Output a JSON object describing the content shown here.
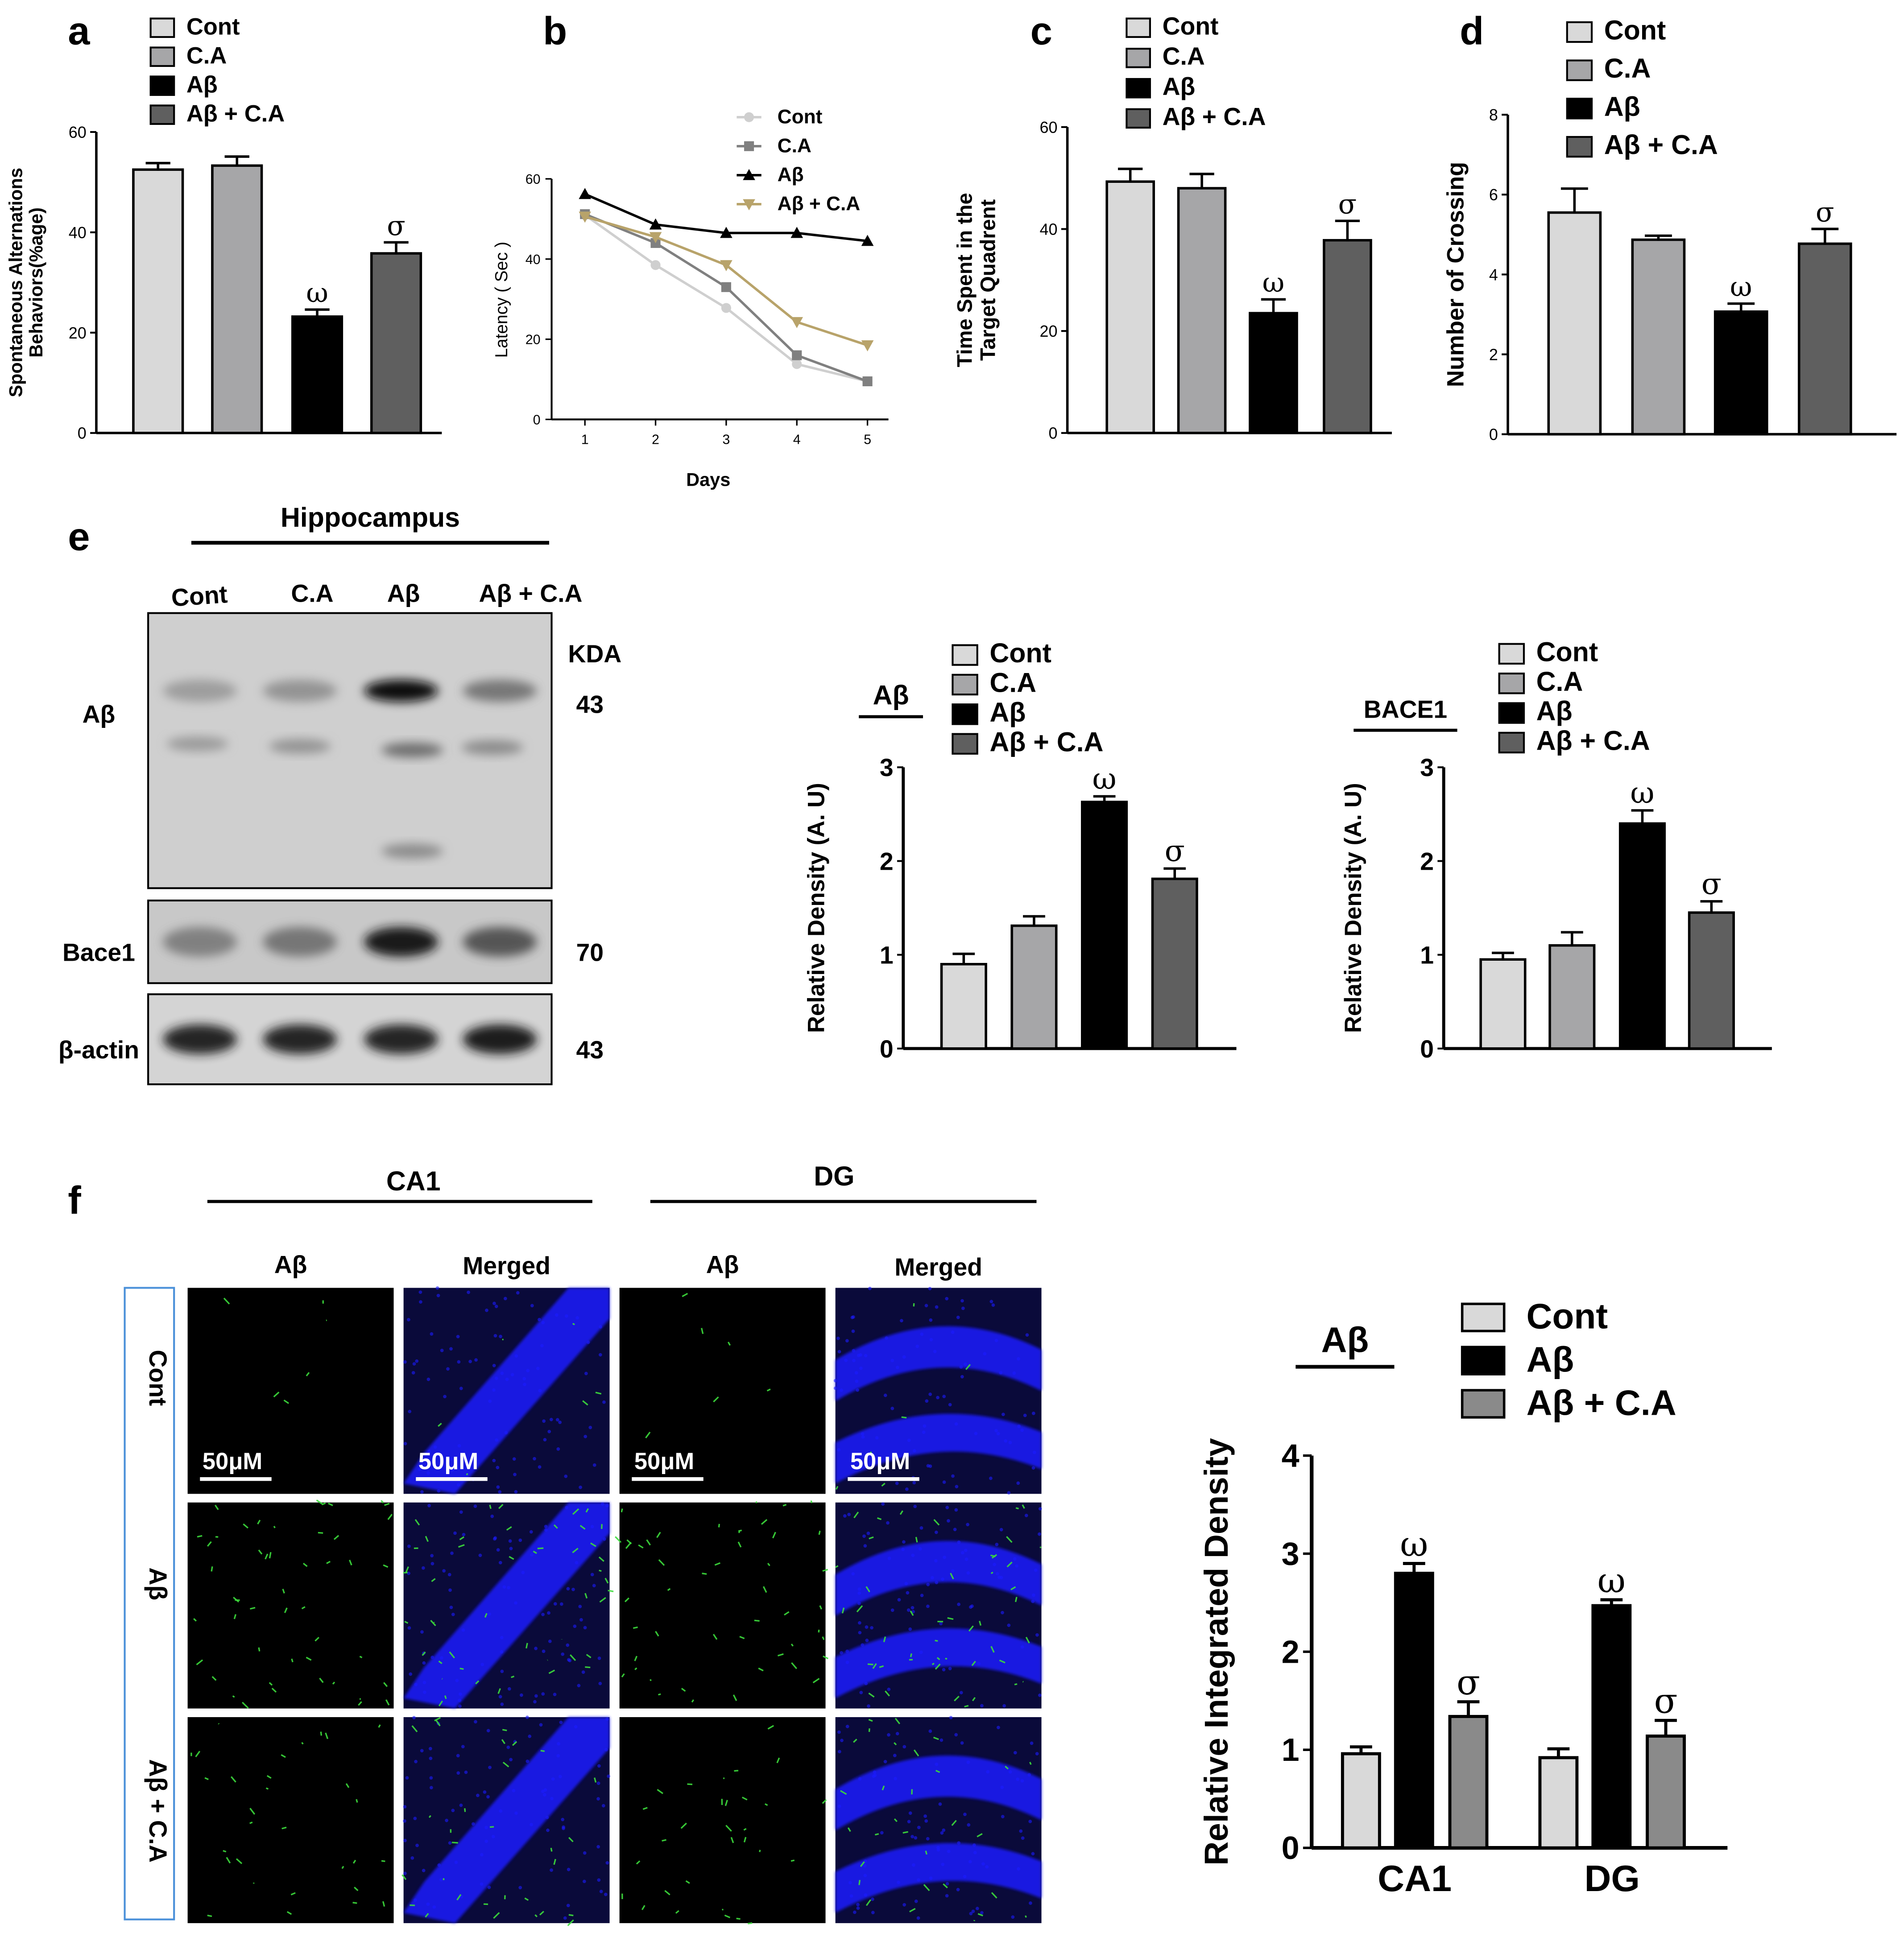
{
  "colors": {
    "cont": "#d9d9d9",
    "ca": "#a6a6a8",
    "ab": "#000000",
    "abca": "#5f5f5f",
    "abca_f": "#8a8a8a",
    "line_cont": "#cfcfcf",
    "line_ca": "#808080",
    "line_ab": "#000000",
    "line_abca": "#b8a36a",
    "nuclei": "#1a1aff",
    "abeta_stain": "#3cdc3c",
    "caption_box": "#4a90d9"
  },
  "chart_data": [
    {
      "id": "a",
      "panel_label": "a",
      "type": "bar",
      "ylabel_lines": [
        "Spontaneous Alternations",
        "Behaviors(%age)"
      ],
      "ylim": [
        0,
        60
      ],
      "yticks": [
        0,
        20,
        40,
        60
      ],
      "legend": [
        "Cont",
        "C.A",
        "Aβ",
        "Aβ + C.A"
      ],
      "legend_position": "top",
      "series": [
        {
          "name": "Cont",
          "value": 52.5,
          "error": 1.3,
          "mark": ""
        },
        {
          "name": "C.A",
          "value": 53.3,
          "error": 1.8,
          "mark": ""
        },
        {
          "name": "Aβ",
          "value": 23.2,
          "error": 1.4,
          "mark": "ω"
        },
        {
          "name": "Aβ + C.A",
          "value": 35.8,
          "error": 2.2,
          "mark": "σ"
        }
      ]
    },
    {
      "id": "b",
      "panel_label": "b",
      "type": "line",
      "xlabel": "Days",
      "ylabel": "Latency ( Sec )",
      "x": [
        1,
        2,
        3,
        4,
        5
      ],
      "ylim": [
        0,
        60
      ],
      "yticks": [
        0,
        20,
        40,
        60
      ],
      "legend_position": "top-right",
      "series": [
        {
          "name": "Cont",
          "marker": "circle",
          "values": [
            51,
            38.5,
            27.8,
            13.8,
            9.5
          ]
        },
        {
          "name": "C.A",
          "marker": "square",
          "values": [
            51.2,
            44,
            33,
            16,
            9.5
          ]
        },
        {
          "name": "Aβ",
          "marker": "triangle-up",
          "values": [
            56.2,
            48.6,
            46.5,
            46.5,
            44.5
          ]
        },
        {
          "name": "Aβ + C.A",
          "marker": "triangle-down",
          "values": [
            50.6,
            45.5,
            38.5,
            24.3,
            18.5
          ]
        }
      ]
    },
    {
      "id": "c",
      "panel_label": "c",
      "type": "bar",
      "ylabel_lines": [
        "Time Spent in the",
        "Target Quadrent"
      ],
      "ylim": [
        0,
        60
      ],
      "yticks": [
        0,
        20,
        40,
        60
      ],
      "legend": [
        "Cont",
        "C.A",
        "Aβ",
        "Aβ + C.A"
      ],
      "legend_position": "top",
      "series": [
        {
          "name": "Cont",
          "value": 49.3,
          "error": 2.5,
          "mark": ""
        },
        {
          "name": "C.A",
          "value": 48,
          "error": 2.8,
          "mark": ""
        },
        {
          "name": "Aβ",
          "value": 23.5,
          "error": 2.7,
          "mark": "ω"
        },
        {
          "name": "Aβ + C.A",
          "value": 37.8,
          "error": 3.8,
          "mark": "σ"
        }
      ]
    },
    {
      "id": "d",
      "panel_label": "d",
      "type": "bar",
      "ylabel_lines": [
        "Number of Crossing"
      ],
      "ylim": [
        0,
        8
      ],
      "yticks": [
        0,
        2,
        4,
        6,
        8
      ],
      "legend": [
        "Cont",
        "C.A",
        "Aβ",
        "Aβ + C.A"
      ],
      "legend_position": "top",
      "series": [
        {
          "name": "Cont",
          "value": 5.55,
          "error": 0.6,
          "mark": ""
        },
        {
          "name": "C.A",
          "value": 4.87,
          "error": 0.1,
          "mark": ""
        },
        {
          "name": "Aβ",
          "value": 3.07,
          "error": 0.2,
          "mark": "ω"
        },
        {
          "name": "Aβ + C.A",
          "value": 4.77,
          "error": 0.37,
          "mark": "σ"
        }
      ]
    },
    {
      "id": "e1",
      "type": "bar",
      "title": "Aβ",
      "ylabel_lines": [
        "Relative Density (A. U)"
      ],
      "ylim": [
        0,
        3
      ],
      "yticks": [
        0,
        1,
        2,
        3
      ],
      "legend": [
        "Cont",
        "C.A",
        "Aβ",
        "Aβ + C.A"
      ],
      "legend_position": "top-right",
      "series": [
        {
          "name": "Cont",
          "value": 0.9,
          "error": 0.11,
          "mark": ""
        },
        {
          "name": "C.A",
          "value": 1.31,
          "error": 0.1,
          "mark": ""
        },
        {
          "name": "Aβ",
          "value": 2.63,
          "error": 0.06,
          "mark": "ω"
        },
        {
          "name": "Aβ + C.A",
          "value": 1.81,
          "error": 0.11,
          "mark": "σ"
        }
      ]
    },
    {
      "id": "e2",
      "type": "bar",
      "title": "BACE1",
      "ylabel_lines": [
        "Relative Density (A. U)"
      ],
      "ylim": [
        0,
        3
      ],
      "yticks": [
        0,
        1,
        2,
        3
      ],
      "legend": [
        "Cont",
        "C.A",
        "Aβ",
        "Aβ + C.A"
      ],
      "legend_position": "top-right",
      "series": [
        {
          "name": "Cont",
          "value": 0.95,
          "error": 0.07,
          "mark": ""
        },
        {
          "name": "C.A",
          "value": 1.1,
          "error": 0.14,
          "mark": ""
        },
        {
          "name": "Aβ",
          "value": 2.4,
          "error": 0.14,
          "mark": "ω"
        },
        {
          "name": "Aβ + C.A",
          "value": 1.45,
          "error": 0.12,
          "mark": "σ"
        }
      ]
    },
    {
      "id": "f",
      "type": "bar",
      "title": "Aβ",
      "ylabel_lines": [
        "Relative Integrated Density"
      ],
      "categories": [
        "CA1",
        "DG"
      ],
      "ylim": [
        0,
        4
      ],
      "yticks": [
        0,
        1,
        2,
        3,
        4
      ],
      "legend": [
        "Cont",
        "Aβ",
        "Aβ + C.A"
      ],
      "legend_position": "top-right",
      "series": [
        {
          "name": "Cont",
          "values": [
            0.96,
            0.92
          ],
          "errors": [
            0.07,
            0.09
          ],
          "marks": [
            "",
            ""
          ]
        },
        {
          "name": "Aβ",
          "values": [
            2.8,
            2.47
          ],
          "errors": [
            0.1,
            0.06
          ],
          "marks": [
            "ω",
            "ω"
          ]
        },
        {
          "name": "Aβ + C.A",
          "values": [
            1.34,
            1.14
          ],
          "errors": [
            0.15,
            0.16
          ],
          "marks": [
            "σ",
            "σ"
          ]
        }
      ]
    }
  ],
  "western": {
    "panel_label": "e",
    "region": "Hippocampus",
    "lanes": [
      "Cont",
      "C.A",
      "Aβ",
      "Aβ + C.A"
    ],
    "kda_label": "KDA",
    "blots": [
      {
        "name": "Aβ",
        "kda": "43",
        "intensity": [
          0.35,
          0.4,
          1.0,
          0.55
        ]
      },
      {
        "name": "Bace1",
        "kda": "70",
        "intensity": [
          0.5,
          0.55,
          0.95,
          0.7
        ]
      },
      {
        "name": "β-actin",
        "kda": "43",
        "intensity": [
          0.9,
          0.9,
          0.9,
          0.92
        ]
      }
    ]
  },
  "micro": {
    "panel_label": "f",
    "regions": [
      "CA1",
      "DG"
    ],
    "columns": [
      "Aβ",
      "Merged",
      "Aβ",
      "Merged"
    ],
    "rows": [
      "Cont",
      "Aβ",
      "Aβ + C.A"
    ],
    "scale_bar": "50μM",
    "stain_density": [
      0.1,
      0.8,
      0.5
    ]
  }
}
